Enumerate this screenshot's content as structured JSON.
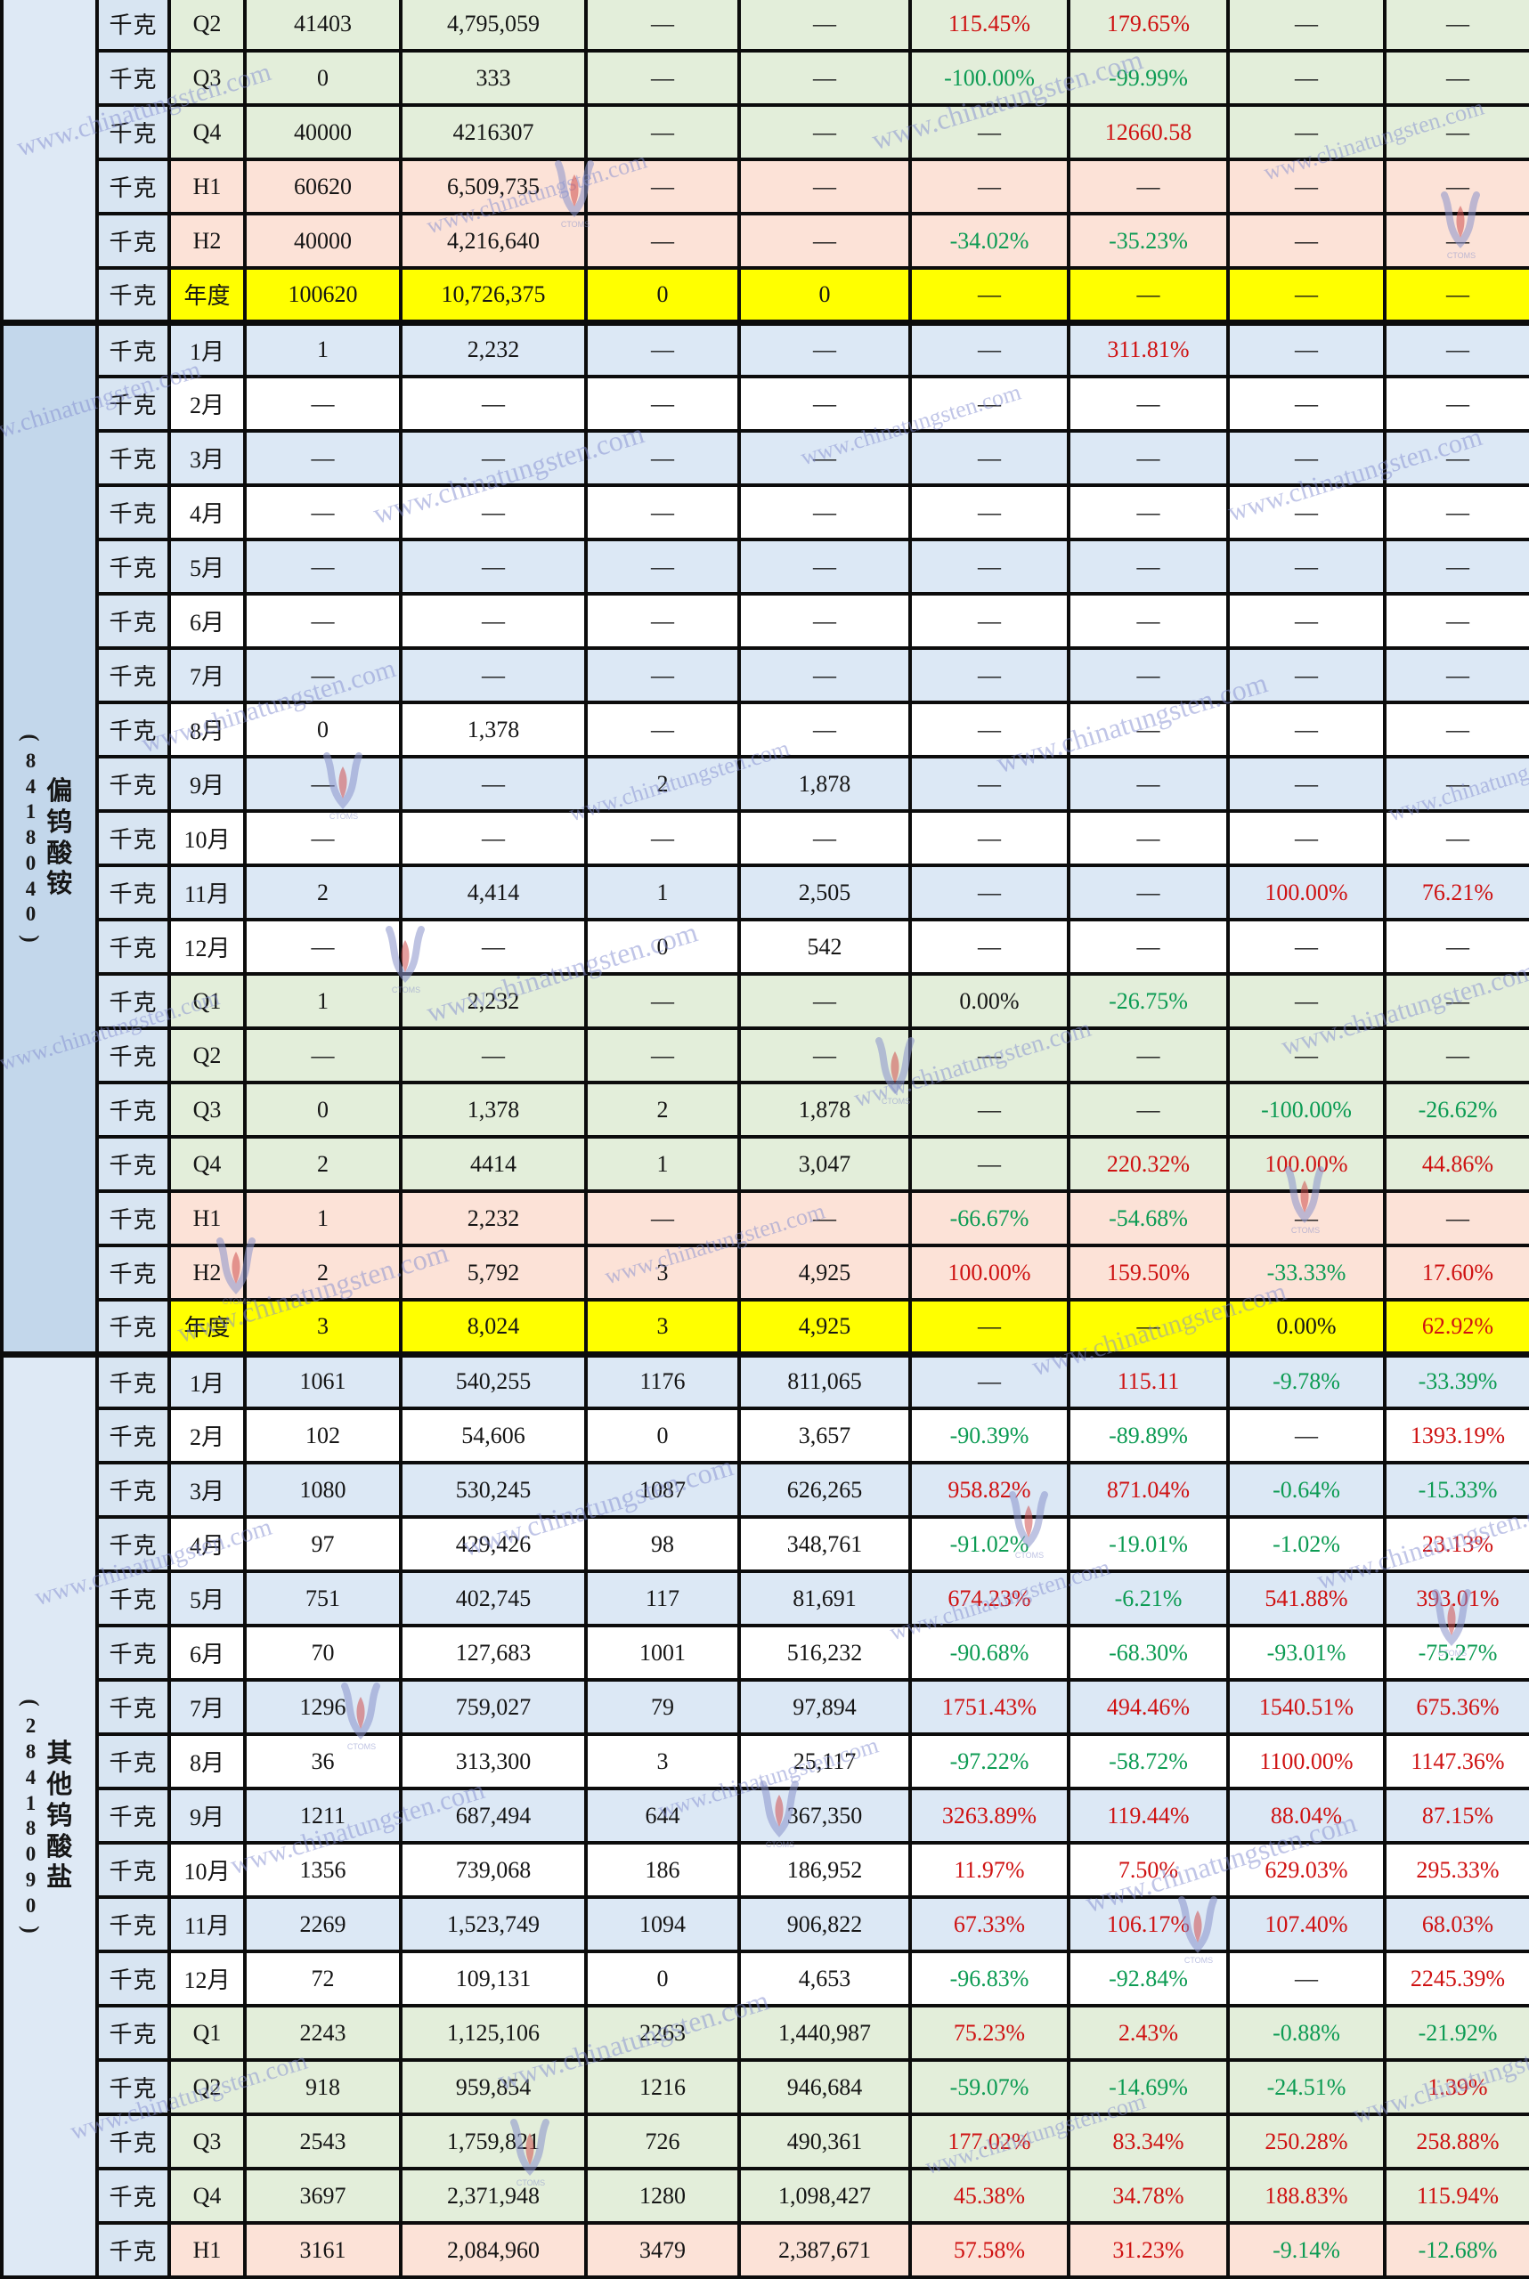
{
  "watermark": {
    "text": "www.chinatungsten.com",
    "logo_label": "CTOMS"
  },
  "colors": {
    "positive_pct": "#cf1212",
    "negative_pct": "#0c9b53",
    "neutral_text": "#151515",
    "year_row_bg": "#ffff00",
    "quarter_row_bg": "#e3eeda",
    "half_row_bg": "#fce2d7",
    "month_odd_bg": "#dce8f5",
    "month_even_bg": "#ffffff",
    "unit_col_bg": "#d8e5f2",
    "sidebar_mid_bg": "#c3d7eb",
    "sidebar_light_bg": "#dee9f5",
    "border": "#0c0c0c",
    "watermark_color": "#8a93cc"
  },
  "sections": [
    {
      "product_code": "",
      "product_name": "",
      "rows": [
        {
          "unit": "千克",
          "period": "Q2",
          "cells": [
            "41403",
            "4,795,059",
            "—",
            "—",
            "115.45%",
            "179.65%",
            "—",
            "—"
          ]
        },
        {
          "unit": "千克",
          "period": "Q3",
          "cells": [
            "0",
            "333",
            "—",
            "—",
            "-100.00%",
            "-99.99%",
            "—",
            "—"
          ]
        },
        {
          "unit": "千克",
          "period": "Q4",
          "cells": [
            "40000",
            "4216307",
            "—",
            "—",
            "—",
            "12660.58",
            "—",
            "—"
          ]
        },
        {
          "unit": "千克",
          "period": "H1",
          "cells": [
            "60620",
            "6,509,735",
            "—",
            "—",
            "—",
            "—",
            "—",
            "—"
          ]
        },
        {
          "unit": "千克",
          "period": "H2",
          "cells": [
            "40000",
            "4,216,640",
            "—",
            "—",
            "-34.02%",
            "-35.23%",
            "—",
            "—"
          ]
        },
        {
          "unit": "千克",
          "period": "年度",
          "cells": [
            "100620",
            "10,726,375",
            "0",
            "0",
            "—",
            "—",
            "—",
            "—"
          ]
        }
      ]
    },
    {
      "product_code": "(8418040)",
      "product_name": "偏钨酸铵",
      "rows": [
        {
          "unit": "千克",
          "period": "1月",
          "cells": [
            "1",
            "2,232",
            "—",
            "—",
            "—",
            "311.81%",
            "—",
            "—"
          ]
        },
        {
          "unit": "千克",
          "period": "2月",
          "cells": [
            "—",
            "—",
            "—",
            "—",
            "—",
            "—",
            "—",
            "—"
          ]
        },
        {
          "unit": "千克",
          "period": "3月",
          "cells": [
            "—",
            "—",
            "—",
            "—",
            "—",
            "—",
            "—",
            "—"
          ]
        },
        {
          "unit": "千克",
          "period": "4月",
          "cells": [
            "—",
            "—",
            "—",
            "—",
            "—",
            "—",
            "—",
            "—"
          ]
        },
        {
          "unit": "千克",
          "period": "5月",
          "cells": [
            "—",
            "—",
            "—",
            "—",
            "—",
            "—",
            "—",
            "—"
          ]
        },
        {
          "unit": "千克",
          "period": "6月",
          "cells": [
            "—",
            "—",
            "—",
            "—",
            "—",
            "—",
            "—",
            "—"
          ]
        },
        {
          "unit": "千克",
          "period": "7月",
          "cells": [
            "—",
            "—",
            "—",
            "—",
            "—",
            "—",
            "—",
            "—"
          ]
        },
        {
          "unit": "千克",
          "period": "8月",
          "cells": [
            "0",
            "1,378",
            "—",
            "—",
            "—",
            "—",
            "—",
            "—"
          ]
        },
        {
          "unit": "千克",
          "period": "9月",
          "cells": [
            "—",
            "—",
            "2",
            "1,878",
            "—",
            "—",
            "—",
            "—"
          ]
        },
        {
          "unit": "千克",
          "period": "10月",
          "cells": [
            "—",
            "—",
            "—",
            "—",
            "—",
            "—",
            "—",
            "—"
          ]
        },
        {
          "unit": "千克",
          "period": "11月",
          "cells": [
            "2",
            "4,414",
            "1",
            "2,505",
            "—",
            "—",
            "100.00%",
            "76.21%"
          ]
        },
        {
          "unit": "千克",
          "period": "12月",
          "cells": [
            "—",
            "—",
            "0",
            "542",
            "—",
            "—",
            "—",
            "—"
          ]
        },
        {
          "unit": "千克",
          "period": "Q1",
          "cells": [
            "1",
            "2,232",
            "—",
            "—",
            "0.00%",
            "-26.75%",
            "—",
            "—"
          ]
        },
        {
          "unit": "千克",
          "period": "Q2",
          "cells": [
            "—",
            "—",
            "—",
            "—",
            "—",
            "—",
            "—",
            "—"
          ]
        },
        {
          "unit": "千克",
          "period": "Q3",
          "cells": [
            "0",
            "1,378",
            "2",
            "1,878",
            "—",
            "—",
            "-100.00%",
            "-26.62%"
          ]
        },
        {
          "unit": "千克",
          "period": "Q4",
          "cells": [
            "2",
            "4414",
            "1",
            "3,047",
            "—",
            "220.32%",
            "100.00%",
            "44.86%"
          ]
        },
        {
          "unit": "千克",
          "period": "H1",
          "cells": [
            "1",
            "2,232",
            "—",
            "—",
            "-66.67%",
            "-54.68%",
            "—",
            "—"
          ]
        },
        {
          "unit": "千克",
          "period": "H2",
          "cells": [
            "2",
            "5,792",
            "3",
            "4,925",
            "100.00%",
            "159.50%",
            "-33.33%",
            "17.60%"
          ]
        },
        {
          "unit": "千克",
          "period": "年度",
          "cells": [
            "3",
            "8,024",
            "3",
            "4,925",
            "—",
            "—",
            "0.00%",
            "62.92%"
          ]
        }
      ]
    },
    {
      "product_code": "(28418090)",
      "product_name": "其他钨酸盐",
      "rows": [
        {
          "unit": "千克",
          "period": "1月",
          "cells": [
            "1061",
            "540,255",
            "1176",
            "811,065",
            "—",
            "115.11",
            "-9.78%",
            "-33.39%"
          ]
        },
        {
          "unit": "千克",
          "period": "2月",
          "cells": [
            "102",
            "54,606",
            "0",
            "3,657",
            "-90.39%",
            "-89.89%",
            "—",
            "1393.19%"
          ]
        },
        {
          "unit": "千克",
          "period": "3月",
          "cells": [
            "1080",
            "530,245",
            "1087",
            "626,265",
            "958.82%",
            "871.04%",
            "-0.64%",
            "-15.33%"
          ]
        },
        {
          "unit": "千克",
          "period": "4月",
          "cells": [
            "97",
            "429,426",
            "98",
            "348,761",
            "-91.02%",
            "-19.01%",
            "-1.02%",
            "23.13%"
          ]
        },
        {
          "unit": "千克",
          "period": "5月",
          "cells": [
            "751",
            "402,745",
            "117",
            "81,691",
            "674.23%",
            "-6.21%",
            "541.88%",
            "393.01%"
          ]
        },
        {
          "unit": "千克",
          "period": "6月",
          "cells": [
            "70",
            "127,683",
            "1001",
            "516,232",
            "-90.68%",
            "-68.30%",
            "-93.01%",
            "-75.27%"
          ]
        },
        {
          "unit": "千克",
          "period": "7月",
          "cells": [
            "1296",
            "759,027",
            "79",
            "97,894",
            "1751.43%",
            "494.46%",
            "1540.51%",
            "675.36%"
          ]
        },
        {
          "unit": "千克",
          "period": "8月",
          "cells": [
            "36",
            "313,300",
            "3",
            "25,117",
            "-97.22%",
            "-58.72%",
            "1100.00%",
            "1147.36%"
          ]
        },
        {
          "unit": "千克",
          "period": "9月",
          "cells": [
            "1211",
            "687,494",
            "644",
            "367,350",
            "3263.89%",
            "119.44%",
            "88.04%",
            "87.15%"
          ]
        },
        {
          "unit": "千克",
          "period": "10月",
          "cells": [
            "1356",
            "739,068",
            "186",
            "186,952",
            "11.97%",
            "7.50%",
            "629.03%",
            "295.33%"
          ]
        },
        {
          "unit": "千克",
          "period": "11月",
          "cells": [
            "2269",
            "1,523,749",
            "1094",
            "906,822",
            "67.33%",
            "106.17%",
            "107.40%",
            "68.03%"
          ]
        },
        {
          "unit": "千克",
          "period": "12月",
          "cells": [
            "72",
            "109,131",
            "0",
            "4,653",
            "-96.83%",
            "-92.84%",
            "—",
            "2245.39%"
          ]
        },
        {
          "unit": "千克",
          "period": "Q1",
          "cells": [
            "2243",
            "1,125,106",
            "2263",
            "1,440,987",
            "75.23%",
            "2.43%",
            "-0.88%",
            "-21.92%"
          ]
        },
        {
          "unit": "千克",
          "period": "Q2",
          "cells": [
            "918",
            "959,854",
            "1216",
            "946,684",
            "-59.07%",
            "-14.69%",
            "-24.51%",
            "1.39%"
          ]
        },
        {
          "unit": "千克",
          "period": "Q3",
          "cells": [
            "2543",
            "1,759,821",
            "726",
            "490,361",
            "177.02%",
            "83.34%",
            "250.28%",
            "258.88%"
          ]
        },
        {
          "unit": "千克",
          "period": "Q4",
          "cells": [
            "3697",
            "2,371,948",
            "1280",
            "1,098,427",
            "45.38%",
            "34.78%",
            "188.83%",
            "115.94%"
          ]
        },
        {
          "unit": "千克",
          "period": "H1",
          "cells": [
            "3161",
            "2,084,960",
            "3479",
            "2,387,671",
            "57.58%",
            "31.23%",
            "-9.14%",
            "-12.68%"
          ]
        }
      ]
    }
  ]
}
